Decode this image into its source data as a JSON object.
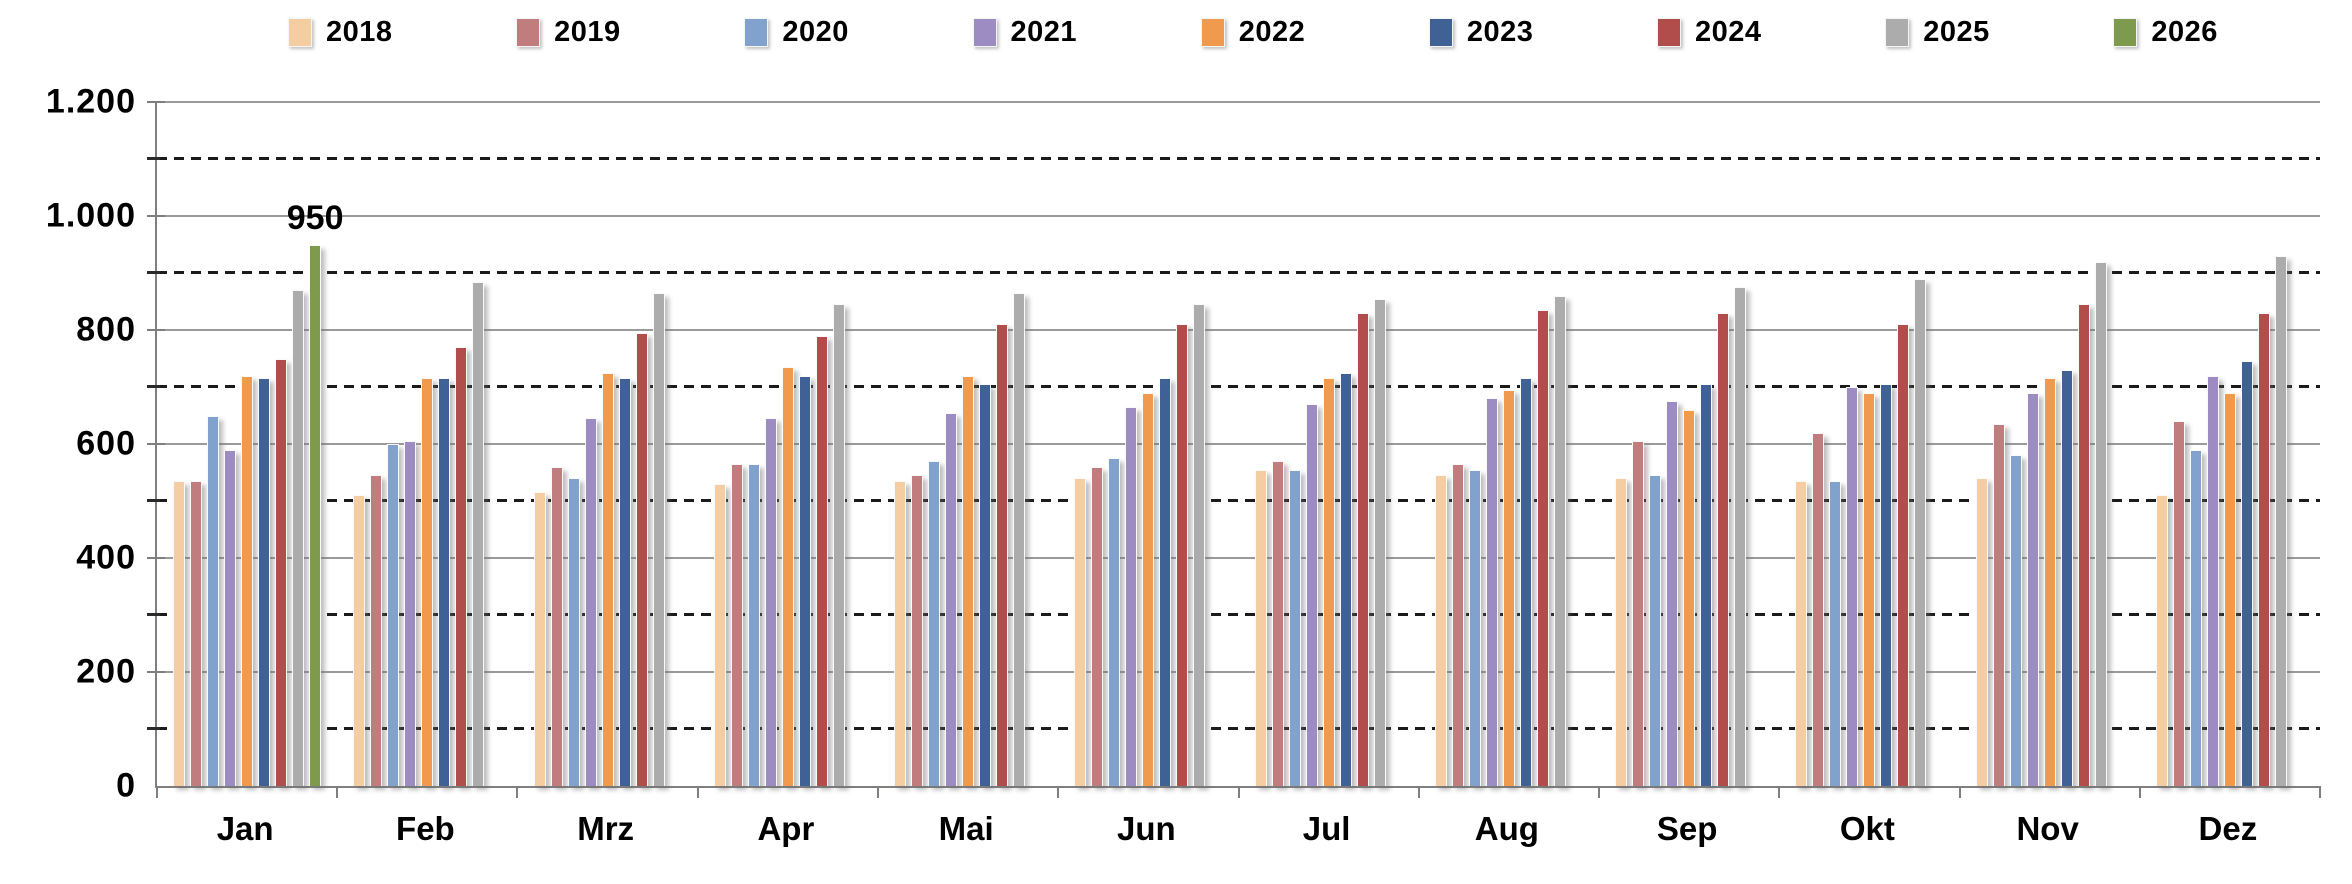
{
  "chart_data": {
    "type": "bar",
    "title": "",
    "xlabel": "",
    "ylabel": "",
    "legend_position": "top",
    "grid": "major-solid-minor-dashed",
    "ylim": [
      0,
      1200
    ],
    "yticks": [
      {
        "value": 0,
        "label": "0"
      },
      {
        "value": 200,
        "label": "200"
      },
      {
        "value": 400,
        "label": "400"
      },
      {
        "value": 600,
        "label": "600"
      },
      {
        "value": 800,
        "label": "800"
      },
      {
        "value": 1000,
        "label": "1.000"
      },
      {
        "value": 1200,
        "label": "1.200"
      }
    ],
    "minor_gridlines": [
      100,
      300,
      500,
      700,
      900,
      1100
    ],
    "categories": [
      "Jan",
      "Feb",
      "Mrz",
      "Apr",
      "Mai",
      "Jun",
      "Jul",
      "Aug",
      "Sep",
      "Okt",
      "Nov",
      "Dez"
    ],
    "series": [
      {
        "name": "2018",
        "color": "#F4CEA2",
        "values": [
          535,
          510,
          515,
          530,
          535,
          540,
          555,
          545,
          540,
          535,
          540,
          510
        ]
      },
      {
        "name": "2019",
        "color": "#C17C7E",
        "values": [
          535,
          545,
          560,
          565,
          545,
          560,
          570,
          565,
          605,
          620,
          635,
          640
        ]
      },
      {
        "name": "2020",
        "color": "#82A2CE",
        "values": [
          650,
          600,
          540,
          565,
          570,
          575,
          555,
          555,
          545,
          535,
          580,
          590
        ]
      },
      {
        "name": "2021",
        "color": "#9D8CC1",
        "values": [
          590,
          605,
          645,
          645,
          655,
          665,
          670,
          680,
          675,
          700,
          690,
          720
        ]
      },
      {
        "name": "2022",
        "color": "#EF9A4C",
        "values": [
          720,
          715,
          725,
          735,
          720,
          690,
          715,
          695,
          660,
          690,
          715,
          690
        ]
      },
      {
        "name": "2023",
        "color": "#3F6195",
        "values": [
          715,
          715,
          715,
          720,
          705,
          715,
          725,
          715,
          705,
          705,
          730,
          745
        ]
      },
      {
        "name": "2024",
        "color": "#B14E4B",
        "values": [
          750,
          770,
          795,
          790,
          810,
          810,
          830,
          835,
          830,
          810,
          845,
          830
        ]
      },
      {
        "name": "2025",
        "color": "#ACACAC",
        "values": [
          870,
          885,
          865,
          845,
          865,
          845,
          855,
          860,
          875,
          890,
          920,
          930
        ]
      },
      {
        "name": "2026",
        "color": "#7E9A4C",
        "values": [
          950,
          null,
          null,
          null,
          null,
          null,
          null,
          null,
          null,
          null,
          null,
          null
        ]
      }
    ],
    "data_labels": [
      {
        "series": "2026",
        "category": "Jan",
        "text": "950"
      }
    ],
    "colors": {
      "axis": "#7f7f7f",
      "major_gridline": "#9a9a9a",
      "minor_gridline": "#1b1b1b",
      "text": "#000000",
      "background": "#ffffff"
    }
  }
}
